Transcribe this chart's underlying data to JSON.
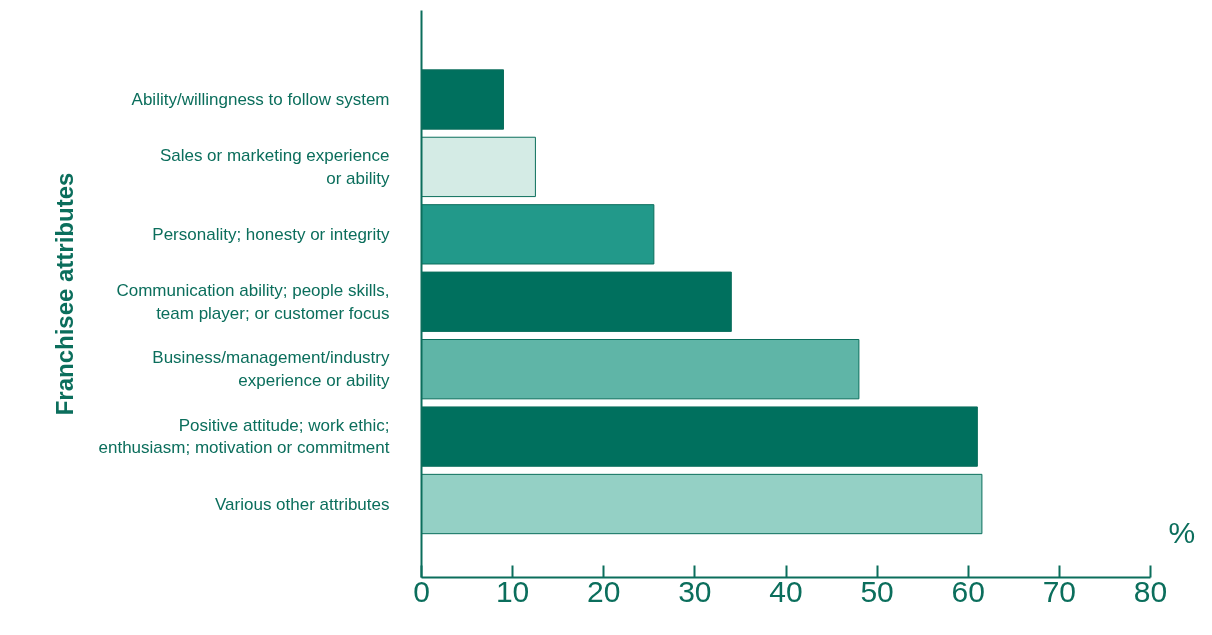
{
  "chart_data": {
    "type": "bar",
    "orientation": "horizontal",
    "categories": [
      "Ability/willingness to follow system",
      "Sales or marketing experience\nor ability",
      "Personality; honesty or integrity",
      "Communication ability; people skills,\nteam player; or customer focus",
      "Business/management/industry\nexperience or ability",
      "Positive attitude; work ethic;\nenthusiasm; motivation or commitment",
      "Various other attributes"
    ],
    "values": [
      9,
      12.5,
      25.5,
      34,
      48,
      61,
      61.5
    ],
    "colors": [
      "#00705e",
      "#d4ebe5",
      "#22998a",
      "#00705e",
      "#5fb5a7",
      "#00705e",
      "#94d0c5"
    ],
    "xlabel": "%",
    "ylabel": "Franchisee attributes",
    "xlim": [
      0,
      80
    ],
    "xticks": [
      0,
      10,
      20,
      30,
      40,
      50,
      60,
      70,
      80
    ],
    "grid": false
  }
}
